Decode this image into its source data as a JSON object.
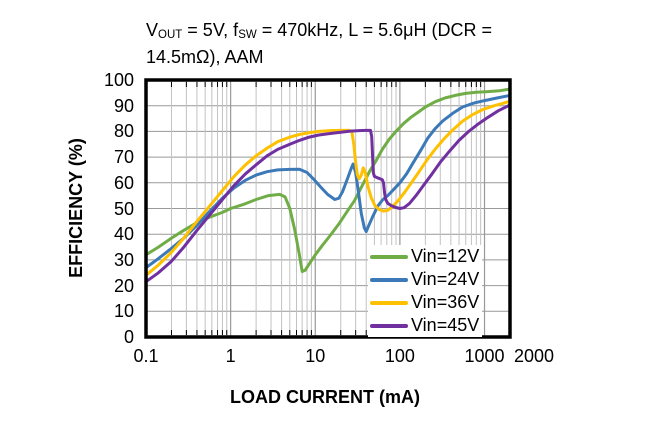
{
  "title": {
    "text": "VOUT = 5V, fSW = 470kHz, L = 5.6μH (DCR = 14.5mΩ), AAM",
    "segments": [
      {
        "text": "V"
      },
      {
        "sub": "OUT"
      },
      {
        "text": " = 5V, f"
      },
      {
        "sub": "SW"
      },
      {
        "text": " = 470kHz, L = 5.6μH (DCR ="
      },
      {
        "break": true
      },
      {
        "text": "14.5mΩ), AAM"
      }
    ]
  },
  "colors": {
    "background": "#ffffff",
    "frame": "#000000",
    "grid_major": "#999999",
    "grid_minor": "#c2c2c2",
    "text": "#000000"
  },
  "chart_data": {
    "type": "line",
    "title": "VOUT = 5V, fSW = 470kHz, L = 5.6μH (DCR = 14.5mΩ), AAM",
    "x_axis": {
      "label": "LOAD CURRENT (mA)",
      "scale": "log",
      "min": 0.1,
      "max": 2000,
      "tick_values": [
        0.1,
        1,
        10,
        100,
        1000,
        2000
      ],
      "tick_labels": [
        "0.1",
        "1",
        "10",
        "100",
        "1000",
        "2000"
      ]
    },
    "y_axis": {
      "label": "EFFICIENCY (%)",
      "scale": "linear",
      "min": 0,
      "max": 100,
      "step": 10,
      "tick_values": [
        0,
        10,
        20,
        30,
        40,
        50,
        60,
        70,
        80,
        90,
        100
      ],
      "tick_labels": [
        "0",
        "10",
        "20",
        "30",
        "40",
        "50",
        "60",
        "70",
        "80",
        "90",
        "100"
      ]
    },
    "grid": {
      "horizontal_major": true,
      "vertical_log_minor": true
    },
    "legend": {
      "position": "inside-bottom-right"
    },
    "series": [
      {
        "name": "Vin=12V",
        "color": "#70AD47",
        "points": [
          [
            0.1,
            32
          ],
          [
            0.14,
            35
          ],
          [
            0.2,
            38.5
          ],
          [
            0.28,
            41.5
          ],
          [
            0.4,
            44.5
          ],
          [
            0.55,
            46.5
          ],
          [
            0.8,
            48.5
          ],
          [
            1,
            50
          ],
          [
            1.4,
            51.5
          ],
          [
            2,
            53.5
          ],
          [
            2.8,
            55
          ],
          [
            3.8,
            55.5
          ],
          [
            4.4,
            54.5
          ],
          [
            5,
            50
          ],
          [
            5.7,
            42
          ],
          [
            6.4,
            33
          ],
          [
            7,
            25.5
          ],
          [
            7.6,
            26
          ],
          [
            8.5,
            28.5
          ],
          [
            10,
            32
          ],
          [
            12,
            35.5
          ],
          [
            15,
            39.5
          ],
          [
            19,
            44
          ],
          [
            24,
            49
          ],
          [
            29,
            53
          ],
          [
            36,
            59
          ],
          [
            44,
            64.5
          ],
          [
            52,
            68.5
          ],
          [
            62,
            73
          ],
          [
            75,
            77
          ],
          [
            90,
            80
          ],
          [
            110,
            83
          ],
          [
            135,
            85.5
          ],
          [
            165,
            87.5
          ],
          [
            200,
            89.5
          ],
          [
            260,
            91.5
          ],
          [
            340,
            93
          ],
          [
            450,
            94
          ],
          [
            600,
            94.8
          ],
          [
            800,
            95.2
          ],
          [
            1100,
            95.5
          ],
          [
            1500,
            95.8
          ],
          [
            2000,
            96.5
          ]
        ]
      },
      {
        "name": "Vin=24V",
        "color": "#3C79B8",
        "points": [
          [
            0.1,
            27
          ],
          [
            0.14,
            30.5
          ],
          [
            0.2,
            34.5
          ],
          [
            0.28,
            38.5
          ],
          [
            0.4,
            43.5
          ],
          [
            0.55,
            48.5
          ],
          [
            0.8,
            54
          ],
          [
            1.1,
            58
          ],
          [
            1.5,
            61
          ],
          [
            2,
            63
          ],
          [
            2.7,
            64.3
          ],
          [
            3.6,
            65
          ],
          [
            5,
            65.2
          ],
          [
            6.5,
            65.3
          ],
          [
            8,
            64
          ],
          [
            9.5,
            61.5
          ],
          [
            11.5,
            58.5
          ],
          [
            14,
            55.5
          ],
          [
            17,
            53.5
          ],
          [
            19,
            54
          ],
          [
            21,
            56.5
          ],
          [
            24,
            61.5
          ],
          [
            26.5,
            65.5
          ],
          [
            28,
            67.3
          ],
          [
            30,
            64
          ],
          [
            32.5,
            56
          ],
          [
            35,
            48
          ],
          [
            38,
            42.5
          ],
          [
            40,
            41
          ],
          [
            43,
            43.5
          ],
          [
            48,
            47
          ],
          [
            55,
            51
          ],
          [
            63,
            53.5
          ],
          [
            72,
            55
          ],
          [
            85,
            57.5
          ],
          [
            100,
            60
          ],
          [
            120,
            63.5
          ],
          [
            145,
            68
          ],
          [
            175,
            72.5
          ],
          [
            215,
            77.5
          ],
          [
            260,
            81
          ],
          [
            320,
            84
          ],
          [
            420,
            87
          ],
          [
            550,
            89.5
          ],
          [
            750,
            91
          ],
          [
            1000,
            92
          ],
          [
            1400,
            93
          ],
          [
            2000,
            94
          ]
        ]
      },
      {
        "name": "Vin=36V",
        "color": "#FFC000",
        "points": [
          [
            0.1,
            24
          ],
          [
            0.14,
            28
          ],
          [
            0.2,
            33
          ],
          [
            0.28,
            38.5
          ],
          [
            0.4,
            45
          ],
          [
            0.55,
            50.5
          ],
          [
            0.8,
            57
          ],
          [
            1.1,
            62.5
          ],
          [
            1.5,
            67
          ],
          [
            2,
            70.5
          ],
          [
            2.7,
            73.5
          ],
          [
            3.6,
            76
          ],
          [
            5,
            77.8
          ],
          [
            6.5,
            78.8
          ],
          [
            8.5,
            79.5
          ],
          [
            11,
            80
          ],
          [
            15,
            80.3
          ],
          [
            20,
            80.4
          ],
          [
            25,
            80.4
          ],
          [
            27,
            80
          ],
          [
            28.5,
            75
          ],
          [
            30,
            68
          ],
          [
            31.5,
            63
          ],
          [
            33,
            61.5
          ],
          [
            35,
            63
          ],
          [
            37,
            65.8
          ],
          [
            39,
            64
          ],
          [
            42,
            58.5
          ],
          [
            46,
            54
          ],
          [
            51,
            51
          ],
          [
            57,
            49.6
          ],
          [
            64,
            49
          ],
          [
            72,
            49.3
          ],
          [
            82,
            50.8
          ],
          [
            95,
            53
          ],
          [
            115,
            56.5
          ],
          [
            140,
            60.5
          ],
          [
            170,
            64.5
          ],
          [
            210,
            69
          ],
          [
            260,
            73
          ],
          [
            330,
            77
          ],
          [
            420,
            80.5
          ],
          [
            550,
            84
          ],
          [
            720,
            86.5
          ],
          [
            950,
            88.5
          ],
          [
            1300,
            90
          ],
          [
            1700,
            91
          ],
          [
            2000,
            91.8
          ]
        ]
      },
      {
        "name": "Vin=45V",
        "color": "#7030A0",
        "points": [
          [
            0.1,
            21.5
          ],
          [
            0.14,
            25
          ],
          [
            0.2,
            29.5
          ],
          [
            0.28,
            35
          ],
          [
            0.4,
            41.5
          ],
          [
            0.55,
            47
          ],
          [
            0.8,
            53.5
          ],
          [
            1.1,
            59
          ],
          [
            1.5,
            63.5
          ],
          [
            2,
            67
          ],
          [
            2.7,
            70.5
          ],
          [
            3.6,
            73
          ],
          [
            5,
            75
          ],
          [
            6.5,
            76.5
          ],
          [
            8.5,
            77.8
          ],
          [
            11,
            78.6
          ],
          [
            15,
            79.2
          ],
          [
            20,
            79.7
          ],
          [
            26,
            80.1
          ],
          [
            33,
            80.3
          ],
          [
            40,
            80.4
          ],
          [
            45,
            80.4
          ],
          [
            46.5,
            78
          ],
          [
            47.5,
            71
          ],
          [
            48.5,
            64
          ],
          [
            50,
            62.5
          ],
          [
            54,
            62
          ],
          [
            58,
            61.6
          ],
          [
            62,
            61.2
          ],
          [
            64,
            60
          ],
          [
            66,
            56
          ],
          [
            68,
            53.5
          ],
          [
            72,
            52
          ],
          [
            80,
            51
          ],
          [
            90,
            50.4
          ],
          [
            100,
            50
          ],
          [
            112,
            50.3
          ],
          [
            130,
            52
          ],
          [
            155,
            55
          ],
          [
            190,
            59
          ],
          [
            240,
            63.5
          ],
          [
            300,
            68
          ],
          [
            390,
            72.5
          ],
          [
            500,
            76.5
          ],
          [
            650,
            80
          ],
          [
            850,
            83
          ],
          [
            1100,
            85.5
          ],
          [
            1450,
            88
          ],
          [
            2000,
            90.3
          ]
        ]
      }
    ]
  }
}
